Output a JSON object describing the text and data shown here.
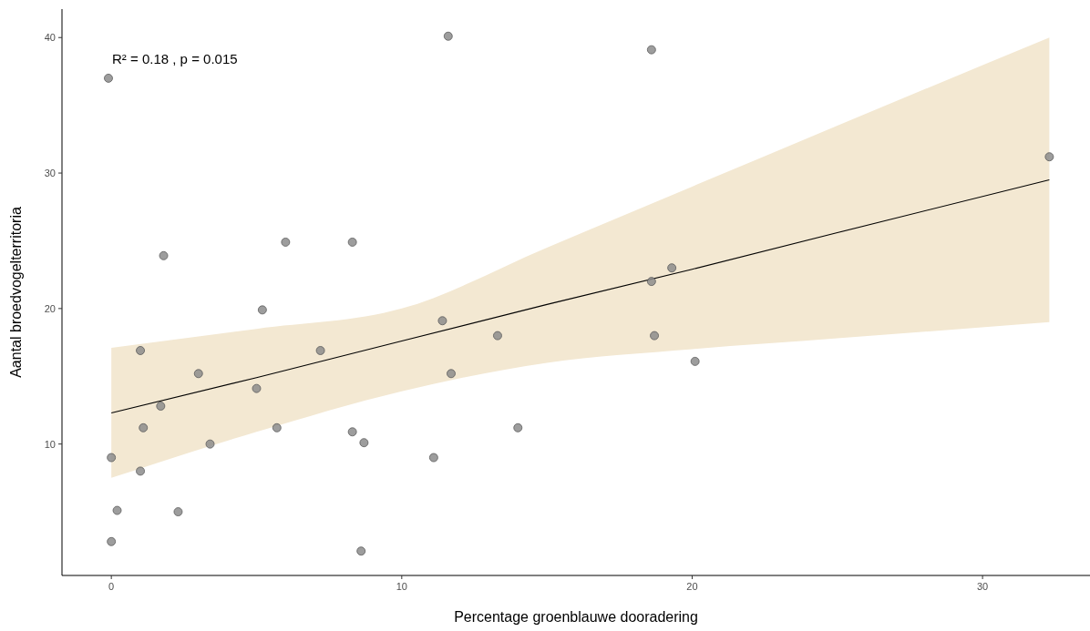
{
  "chart_data": {
    "type": "scatter",
    "xlabel": "Percentage groenblauwe dooradering",
    "ylabel": "Aantal broedvogelterritoria",
    "annotations": [
      "R² = 0.18 , p = 0.015"
    ],
    "xlim": [
      -1.7,
      33.7
    ],
    "ylim": [
      0.3,
      42.1
    ],
    "xticks": [
      0,
      10,
      20,
      30
    ],
    "yticks": [
      10,
      20,
      30,
      40
    ],
    "grid": false,
    "series": [
      {
        "marker": "circle",
        "color": "#8c8c8c",
        "x": [
          -0.1,
          11.6,
          18.6,
          32.3,
          0,
          0.2,
          0,
          1.0,
          1.1,
          1.0,
          1.7,
          2.3,
          3.0,
          3.4,
          5.0,
          5.2,
          5.7,
          6.0,
          7.2,
          8.3,
          8.3,
          8.7,
          8.6,
          11.1,
          11.4,
          11.7,
          13.3,
          14.0,
          18.6,
          18.7,
          19.3,
          20.1,
          1.8
        ],
        "values": [
          37.0,
          40.1,
          39.1,
          31.2,
          9.0,
          5.1,
          2.8,
          16.9,
          11.2,
          8.0,
          12.8,
          5.0,
          15.2,
          10.0,
          14.1,
          19.9,
          11.2,
          24.9,
          16.9,
          24.9,
          10.9,
          10.1,
          2.1,
          9.0,
          19.1,
          15.2,
          18.0,
          11.2,
          22.0,
          18.0,
          23.0,
          16.1,
          23.9
        ]
      },
      {
        "type": "line",
        "color": "#000000",
        "x": [
          0,
          5,
          10,
          15,
          20,
          25,
          32.3
        ],
        "values": [
          12.3,
          14.9,
          17.6,
          20.3,
          22.9,
          25.6,
          29.5
        ],
        "lower": [
          7.5,
          10.9,
          13.9,
          16.0,
          17.0,
          17.8,
          19.0
        ],
        "upper": [
          17.1,
          18.5,
          20.0,
          24.5,
          29.0,
          33.5,
          40.0
        ]
      }
    ]
  }
}
